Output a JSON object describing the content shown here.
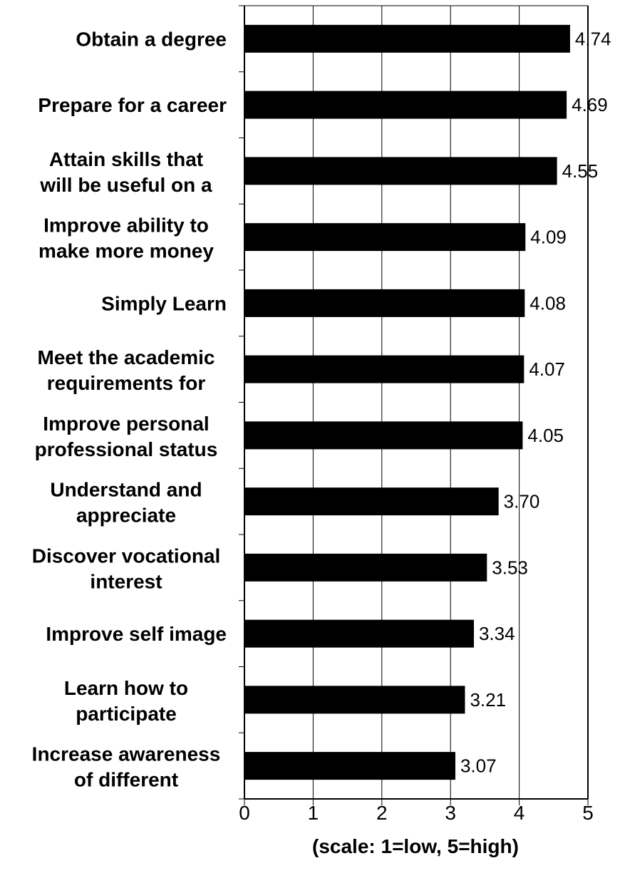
{
  "chart_data": {
    "type": "bar",
    "orientation": "horizontal",
    "categories": [
      [
        "Obtain a degree"
      ],
      [
        "Prepare for a career"
      ],
      [
        "Attain skills that",
        "will be useful on a"
      ],
      [
        "Improve ability to",
        "make more money"
      ],
      [
        "Simply Learn"
      ],
      [
        "Meet the academic",
        "requirements for"
      ],
      [
        "Improve personal",
        "professional status"
      ],
      [
        "Understand and",
        "appreciate"
      ],
      [
        "Discover vocational",
        "interest"
      ],
      [
        "Improve self image"
      ],
      [
        "Learn how to",
        "participate"
      ],
      [
        "Increase awareness",
        "of different"
      ]
    ],
    "values": [
      4.74,
      4.69,
      4.55,
      4.09,
      4.08,
      4.07,
      4.05,
      3.7,
      3.53,
      3.34,
      3.21,
      3.07
    ],
    "value_labels": [
      "4.74",
      "4.69",
      "4.55",
      "4.09",
      "4.08",
      "4.07",
      "4.05",
      "3.70",
      "3.53",
      "3.34",
      "3.21",
      "3.07"
    ],
    "xlabel": "(scale: 1=low, 5=high)",
    "xlim": [
      0,
      5
    ],
    "xticks": [
      "0",
      "1",
      "2",
      "3",
      "4",
      "5"
    ],
    "grid": "vertical",
    "legend": "none",
    "bar_color": "#000000"
  }
}
